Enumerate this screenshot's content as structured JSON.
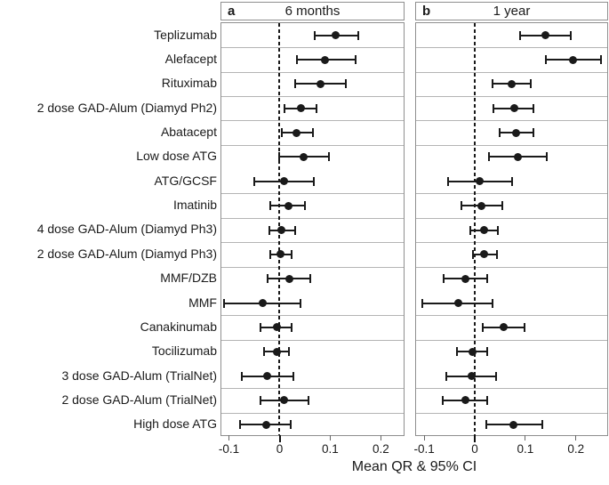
{
  "chart_data": {
    "type": "scatter",
    "subtype": "forest-plot",
    "xlabel": "Mean QR & 95% CI",
    "x_ticks": [
      {
        "value": -0.1,
        "label": "-0.1"
      },
      {
        "value": 0,
        "label": "0"
      },
      {
        "value": 0.1,
        "label": "0.1"
      },
      {
        "value": 0.2,
        "label": "0.2"
      }
    ],
    "grid": "horizontal-group-separators",
    "legend": "none",
    "panels": [
      {
        "key": "a",
        "title": "6 months",
        "series_key": "six_months",
        "xlim": [
          -0.115,
          0.245
        ]
      },
      {
        "key": "b",
        "title": "1 year",
        "series_key": "one_year",
        "xlim": [
          -0.116,
          0.262
        ]
      }
    ],
    "rows": [
      {
        "label": "Teplizumab",
        "six_months": {
          "mean": 0.11,
          "lo": 0.07,
          "hi": 0.155
        },
        "one_year": {
          "mean": 0.14,
          "lo": 0.09,
          "hi": 0.19
        },
        "separator_after": true
      },
      {
        "label": "Alefacept",
        "six_months": {
          "mean": 0.09,
          "lo": 0.035,
          "hi": 0.15
        },
        "one_year": {
          "mean": 0.195,
          "lo": 0.14,
          "hi": 0.25
        },
        "separator_after": true
      },
      {
        "label": "Rituximab",
        "six_months": {
          "mean": 0.08,
          "lo": 0.03,
          "hi": 0.13
        },
        "one_year": {
          "mean": 0.073,
          "lo": 0.035,
          "hi": 0.11
        },
        "separator_after": true
      },
      {
        "label": "2 dose GAD-Alum (Diamyd Ph2)",
        "six_months": {
          "mean": 0.042,
          "lo": 0.01,
          "hi": 0.073
        },
        "one_year": {
          "mean": 0.078,
          "lo": 0.037,
          "hi": 0.116
        },
        "separator_after": true
      },
      {
        "label": "Abatacept",
        "six_months": {
          "mean": 0.034,
          "lo": 0.004,
          "hi": 0.066
        },
        "one_year": {
          "mean": 0.082,
          "lo": 0.05,
          "hi": 0.116
        },
        "separator_after": true
      },
      {
        "label": "Low dose ATG",
        "six_months": {
          "mean": 0.047,
          "lo": -0.001,
          "hi": 0.098
        },
        "one_year": {
          "mean": 0.086,
          "lo": 0.028,
          "hi": 0.142
        },
        "separator_after": false
      },
      {
        "label": "ATG/GCSF",
        "six_months": {
          "mean": 0.008,
          "lo": -0.05,
          "hi": 0.068
        },
        "one_year": {
          "mean": 0.01,
          "lo": -0.053,
          "hi": 0.074
        },
        "separator_after": true
      },
      {
        "label": "Imatinib",
        "six_months": {
          "mean": 0.017,
          "lo": -0.019,
          "hi": 0.05
        },
        "one_year": {
          "mean": 0.014,
          "lo": -0.026,
          "hi": 0.054
        },
        "separator_after": true
      },
      {
        "label": "4 dose GAD-Alum (Diamyd Ph3)",
        "six_months": {
          "mean": 0.004,
          "lo": -0.021,
          "hi": 0.031
        },
        "one_year": {
          "mean": 0.019,
          "lo": -0.008,
          "hi": 0.045
        },
        "separator_after": true
      },
      {
        "label": "2 dose GAD-Alum (Diamyd Ph3)",
        "six_months": {
          "mean": 0.002,
          "lo": -0.019,
          "hi": 0.024
        },
        "one_year": {
          "mean": 0.019,
          "lo": -0.004,
          "hi": 0.044
        },
        "separator_after": true
      },
      {
        "label": "MMF/DZB",
        "six_months": {
          "mean": 0.019,
          "lo": -0.023,
          "hi": 0.061
        },
        "one_year": {
          "mean": -0.018,
          "lo": -0.062,
          "hi": 0.025
        },
        "separator_after": false
      },
      {
        "label": "MMF",
        "six_months": {
          "mean": -0.033,
          "lo": -0.11,
          "hi": 0.041
        },
        "one_year": {
          "mean": -0.033,
          "lo": -0.103,
          "hi": 0.036
        },
        "separator_after": true
      },
      {
        "label": "Canakinumab",
        "six_months": {
          "mean": -0.006,
          "lo": -0.037,
          "hi": 0.024
        },
        "one_year": {
          "mean": 0.058,
          "lo": 0.015,
          "hi": 0.098
        },
        "separator_after": true
      },
      {
        "label": "Tocilizumab",
        "six_months": {
          "mean": -0.006,
          "lo": -0.03,
          "hi": 0.018
        },
        "one_year": {
          "mean": -0.004,
          "lo": -0.036,
          "hi": 0.025
        },
        "separator_after": false
      },
      {
        "label": "3 dose GAD-Alum (TrialNet)",
        "six_months": {
          "mean": -0.024,
          "lo": -0.075,
          "hi": 0.027
        },
        "one_year": {
          "mean": -0.006,
          "lo": -0.056,
          "hi": 0.043
        },
        "separator_after": true
      },
      {
        "label": "2 dose GAD-Alum (TrialNet)",
        "six_months": {
          "mean": 0.009,
          "lo": -0.037,
          "hi": 0.057
        },
        "one_year": {
          "mean": -0.018,
          "lo": -0.063,
          "hi": 0.025
        },
        "separator_after": true
      },
      {
        "label": "High dose ATG",
        "six_months": {
          "mean": -0.027,
          "lo": -0.079,
          "hi": 0.022
        },
        "one_year": {
          "mean": 0.077,
          "lo": 0.023,
          "hi": 0.133
        },
        "separator_after": true
      }
    ],
    "colors": {
      "marker": "#1a1a1a",
      "frame": "#8f8f8f",
      "separator": "#b4b4b4",
      "zero_line": "#1a1a1a"
    }
  }
}
